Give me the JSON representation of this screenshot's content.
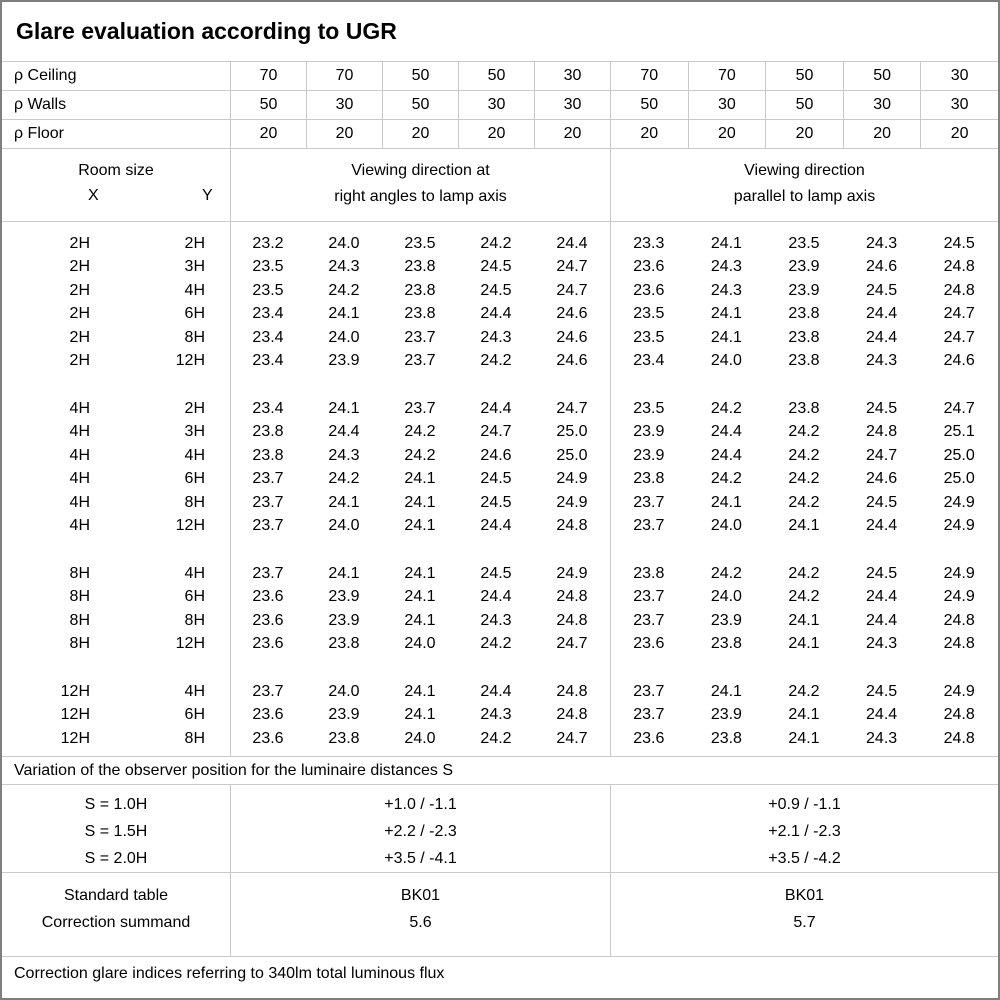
{
  "title": "Glare evaluation according to UGR",
  "reflectance": {
    "rows": [
      {
        "label": "ρ Ceiling",
        "values": [
          "70",
          "70",
          "50",
          "50",
          "30",
          "70",
          "70",
          "50",
          "50",
          "30"
        ]
      },
      {
        "label": "ρ Walls",
        "values": [
          "50",
          "30",
          "50",
          "30",
          "30",
          "50",
          "30",
          "50",
          "30",
          "30"
        ]
      },
      {
        "label": "ρ Floor",
        "values": [
          "20",
          "20",
          "20",
          "20",
          "20",
          "20",
          "20",
          "20",
          "20",
          "20"
        ]
      }
    ]
  },
  "header": {
    "room_size": "Room size",
    "x": "X",
    "y": "Y",
    "groups": [
      {
        "line1": "Viewing direction at",
        "line2": "right angles to lamp axis"
      },
      {
        "line1": "Viewing direction",
        "line2": "parallel to lamp axis"
      }
    ]
  },
  "ugr_groups": [
    {
      "rows": [
        {
          "x": "2H",
          "y": "2H",
          "values": [
            "23.2",
            "24.0",
            "23.5",
            "24.2",
            "24.4",
            "23.3",
            "24.1",
            "23.5",
            "24.3",
            "24.5"
          ]
        },
        {
          "x": "2H",
          "y": "3H",
          "values": [
            "23.5",
            "24.3",
            "23.8",
            "24.5",
            "24.7",
            "23.6",
            "24.3",
            "23.9",
            "24.6",
            "24.8"
          ]
        },
        {
          "x": "2H",
          "y": "4H",
          "values": [
            "23.5",
            "24.2",
            "23.8",
            "24.5",
            "24.7",
            "23.6",
            "24.3",
            "23.9",
            "24.5",
            "24.8"
          ]
        },
        {
          "x": "2H",
          "y": "6H",
          "values": [
            "23.4",
            "24.1",
            "23.8",
            "24.4",
            "24.6",
            "23.5",
            "24.1",
            "23.8",
            "24.4",
            "24.7"
          ]
        },
        {
          "x": "2H",
          "y": "8H",
          "values": [
            "23.4",
            "24.0",
            "23.7",
            "24.3",
            "24.6",
            "23.5",
            "24.1",
            "23.8",
            "24.4",
            "24.7"
          ]
        },
        {
          "x": "2H",
          "y": "12H",
          "values": [
            "23.4",
            "23.9",
            "23.7",
            "24.2",
            "24.6",
            "23.4",
            "24.0",
            "23.8",
            "24.3",
            "24.6"
          ]
        }
      ]
    },
    {
      "rows": [
        {
          "x": "4H",
          "y": "2H",
          "values": [
            "23.4",
            "24.1",
            "23.7",
            "24.4",
            "24.7",
            "23.5",
            "24.2",
            "23.8",
            "24.5",
            "24.7"
          ]
        },
        {
          "x": "4H",
          "y": "3H",
          "values": [
            "23.8",
            "24.4",
            "24.2",
            "24.7",
            "25.0",
            "23.9",
            "24.4",
            "24.2",
            "24.8",
            "25.1"
          ]
        },
        {
          "x": "4H",
          "y": "4H",
          "values": [
            "23.8",
            "24.3",
            "24.2",
            "24.6",
            "25.0",
            "23.9",
            "24.4",
            "24.2",
            "24.7",
            "25.0"
          ]
        },
        {
          "x": "4H",
          "y": "6H",
          "values": [
            "23.7",
            "24.2",
            "24.1",
            "24.5",
            "24.9",
            "23.8",
            "24.2",
            "24.2",
            "24.6",
            "25.0"
          ]
        },
        {
          "x": "4H",
          "y": "8H",
          "values": [
            "23.7",
            "24.1",
            "24.1",
            "24.5",
            "24.9",
            "23.7",
            "24.1",
            "24.2",
            "24.5",
            "24.9"
          ]
        },
        {
          "x": "4H",
          "y": "12H",
          "values": [
            "23.7",
            "24.0",
            "24.1",
            "24.4",
            "24.8",
            "23.7",
            "24.0",
            "24.1",
            "24.4",
            "24.9"
          ]
        }
      ]
    },
    {
      "rows": [
        {
          "x": "8H",
          "y": "4H",
          "values": [
            "23.7",
            "24.1",
            "24.1",
            "24.5",
            "24.9",
            "23.8",
            "24.2",
            "24.2",
            "24.5",
            "24.9"
          ]
        },
        {
          "x": "8H",
          "y": "6H",
          "values": [
            "23.6",
            "23.9",
            "24.1",
            "24.4",
            "24.8",
            "23.7",
            "24.0",
            "24.2",
            "24.4",
            "24.9"
          ]
        },
        {
          "x": "8H",
          "y": "8H",
          "values": [
            "23.6",
            "23.9",
            "24.1",
            "24.3",
            "24.8",
            "23.7",
            "23.9",
            "24.1",
            "24.4",
            "24.8"
          ]
        },
        {
          "x": "8H",
          "y": "12H",
          "values": [
            "23.6",
            "23.8",
            "24.0",
            "24.2",
            "24.7",
            "23.6",
            "23.8",
            "24.1",
            "24.3",
            "24.8"
          ]
        }
      ]
    },
    {
      "rows": [
        {
          "x": "12H",
          "y": "4H",
          "values": [
            "23.7",
            "24.0",
            "24.1",
            "24.4",
            "24.8",
            "23.7",
            "24.1",
            "24.2",
            "24.5",
            "24.9"
          ]
        },
        {
          "x": "12H",
          "y": "6H",
          "values": [
            "23.6",
            "23.9",
            "24.1",
            "24.3",
            "24.8",
            "23.7",
            "23.9",
            "24.1",
            "24.4",
            "24.8"
          ]
        },
        {
          "x": "12H",
          "y": "8H",
          "values": [
            "23.6",
            "23.8",
            "24.0",
            "24.2",
            "24.7",
            "23.6",
            "23.8",
            "24.1",
            "24.3",
            "24.8"
          ]
        }
      ]
    }
  ],
  "variation": {
    "note": "Variation of the observer position for the luminaire distances S",
    "labels": [
      "S = 1.0H",
      "S = 1.5H",
      "S = 2.0H"
    ],
    "group1": [
      "+1.0 / -1.1",
      "+2.2 / -2.3",
      "+3.5 / -4.1"
    ],
    "group2": [
      "+0.9 / -1.1",
      "+2.1 / -2.3",
      "+3.5 / -4.2"
    ]
  },
  "summary": {
    "labels": [
      "Standard table",
      "Correction summand"
    ],
    "group1": [
      "BK01",
      "5.6"
    ],
    "group2": [
      "BK01",
      "5.7"
    ]
  },
  "footer_note": "Correction glare indices referring to 340lm total luminous flux",
  "colors": {
    "grid_line": "#c9c9c9",
    "outer_border": "#7f7f7f",
    "text": "#000000",
    "background": "#ffffff"
  }
}
